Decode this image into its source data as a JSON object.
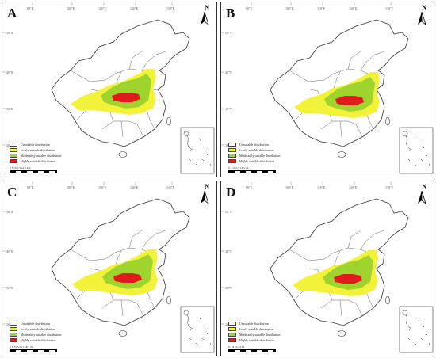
{
  "colors": {
    "unsuitable": "#ffffff",
    "lowly": "#f2f23a",
    "moderately": "#9fd42e",
    "highly": "#e01b1b",
    "border": "#333333"
  },
  "panels": [
    {
      "letter": "A",
      "legend": [
        "Unsuitable distribution",
        "Lowly suitable distribution",
        "Moderately suitable distribution",
        "Highly suitable distribution"
      ],
      "scale": "0  3 70.5 5       14 5       km"
    },
    {
      "letter": "B",
      "legend": [
        "Unsuitable distribution",
        "Lowly suitable distribution",
        "Moderately suitable distribution",
        "Highly suitable distribution"
      ],
      "scale": "0  2 70.5 5       14 5       22"
    },
    {
      "letter": "C",
      "legend": [
        "Unsuitable distribution",
        "Lowly suitable distribution",
        "Moderately suitable distribution",
        "Highly suitable distribution"
      ],
      "scale": "0  2.75 5.5       11   16.5      22"
    },
    {
      "letter": "D",
      "legend": [
        "Unsuitable distribution",
        "Lowly suitable distribution",
        "Moderately suitable distribution",
        "Highly suitable distribution"
      ],
      "scale": "0  4   8      16      24      32"
    }
  ],
  "graticule": {
    "top": [
      "80°E",
      "100°E",
      "110°E",
      "120°E",
      "130°E"
    ],
    "left": [
      "50°N",
      "40°N",
      "30°N",
      "20°N"
    ]
  },
  "north_label": "N"
}
